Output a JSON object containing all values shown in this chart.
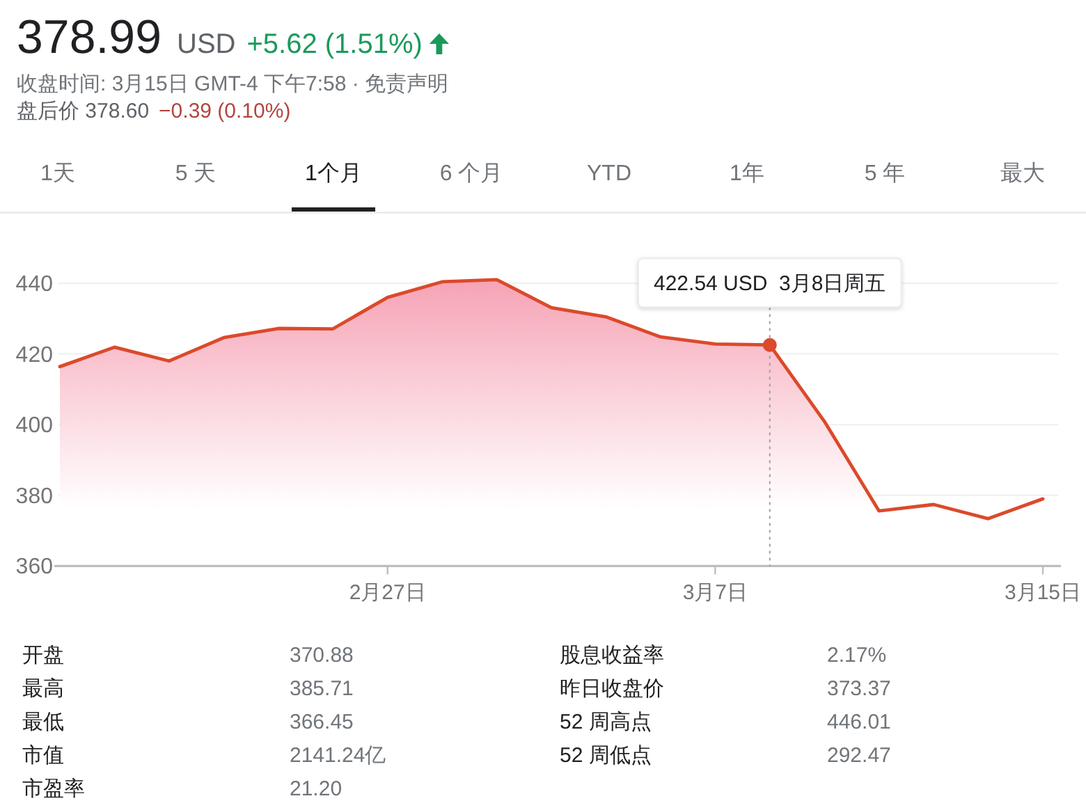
{
  "chart_data": {
    "type": "area",
    "title": "378.99",
    "subtitle": "收盘时间: 3月15日 GMT-4 下午7:58 · 免责声明",
    "categories": [
      null,
      null,
      null,
      null,
      null,
      null,
      "2月27日",
      null,
      null,
      null,
      null,
      null,
      "3月7日",
      null,
      null,
      null,
      null,
      null,
      "3月15日"
    ],
    "series": [
      {
        "color": "#db4a2b",
        "values": [
          416.4,
          421.9,
          418.0,
          424.6,
          427.2,
          427.1,
          436.0,
          440.4,
          441.0,
          433.1,
          430.5,
          424.8,
          422.8,
          422.54,
          400.9,
          375.6,
          377.4,
          373.4,
          379.0
        ]
      }
    ],
    "ylim": [
      360,
      460
    ],
    "yticks": [
      360,
      380,
      400,
      420,
      440
    ],
    "grid": "y",
    "annotations": [
      "USD",
      "+5.62 (1.51%)",
      "盘后价 378.60",
      "−0.39 (0.10%)",
      "1天",
      "5 天",
      "1个月",
      "6 个月",
      "YTD",
      "1年",
      "5 年",
      "最大",
      "开盘",
      "370.88",
      "最高",
      "385.71",
      "最低",
      "366.45",
      "市值",
      "2141.24亿",
      "市盈率",
      "21.20",
      "股息收益率",
      "2.17%",
      "昨日收盘价",
      "373.37",
      "52 周高点",
      "446.01",
      "52 周低点",
      "292.47",
      {
        "text": "422.54 USD  3月8日周五",
        "y": 422.54
      }
    ]
  }
}
